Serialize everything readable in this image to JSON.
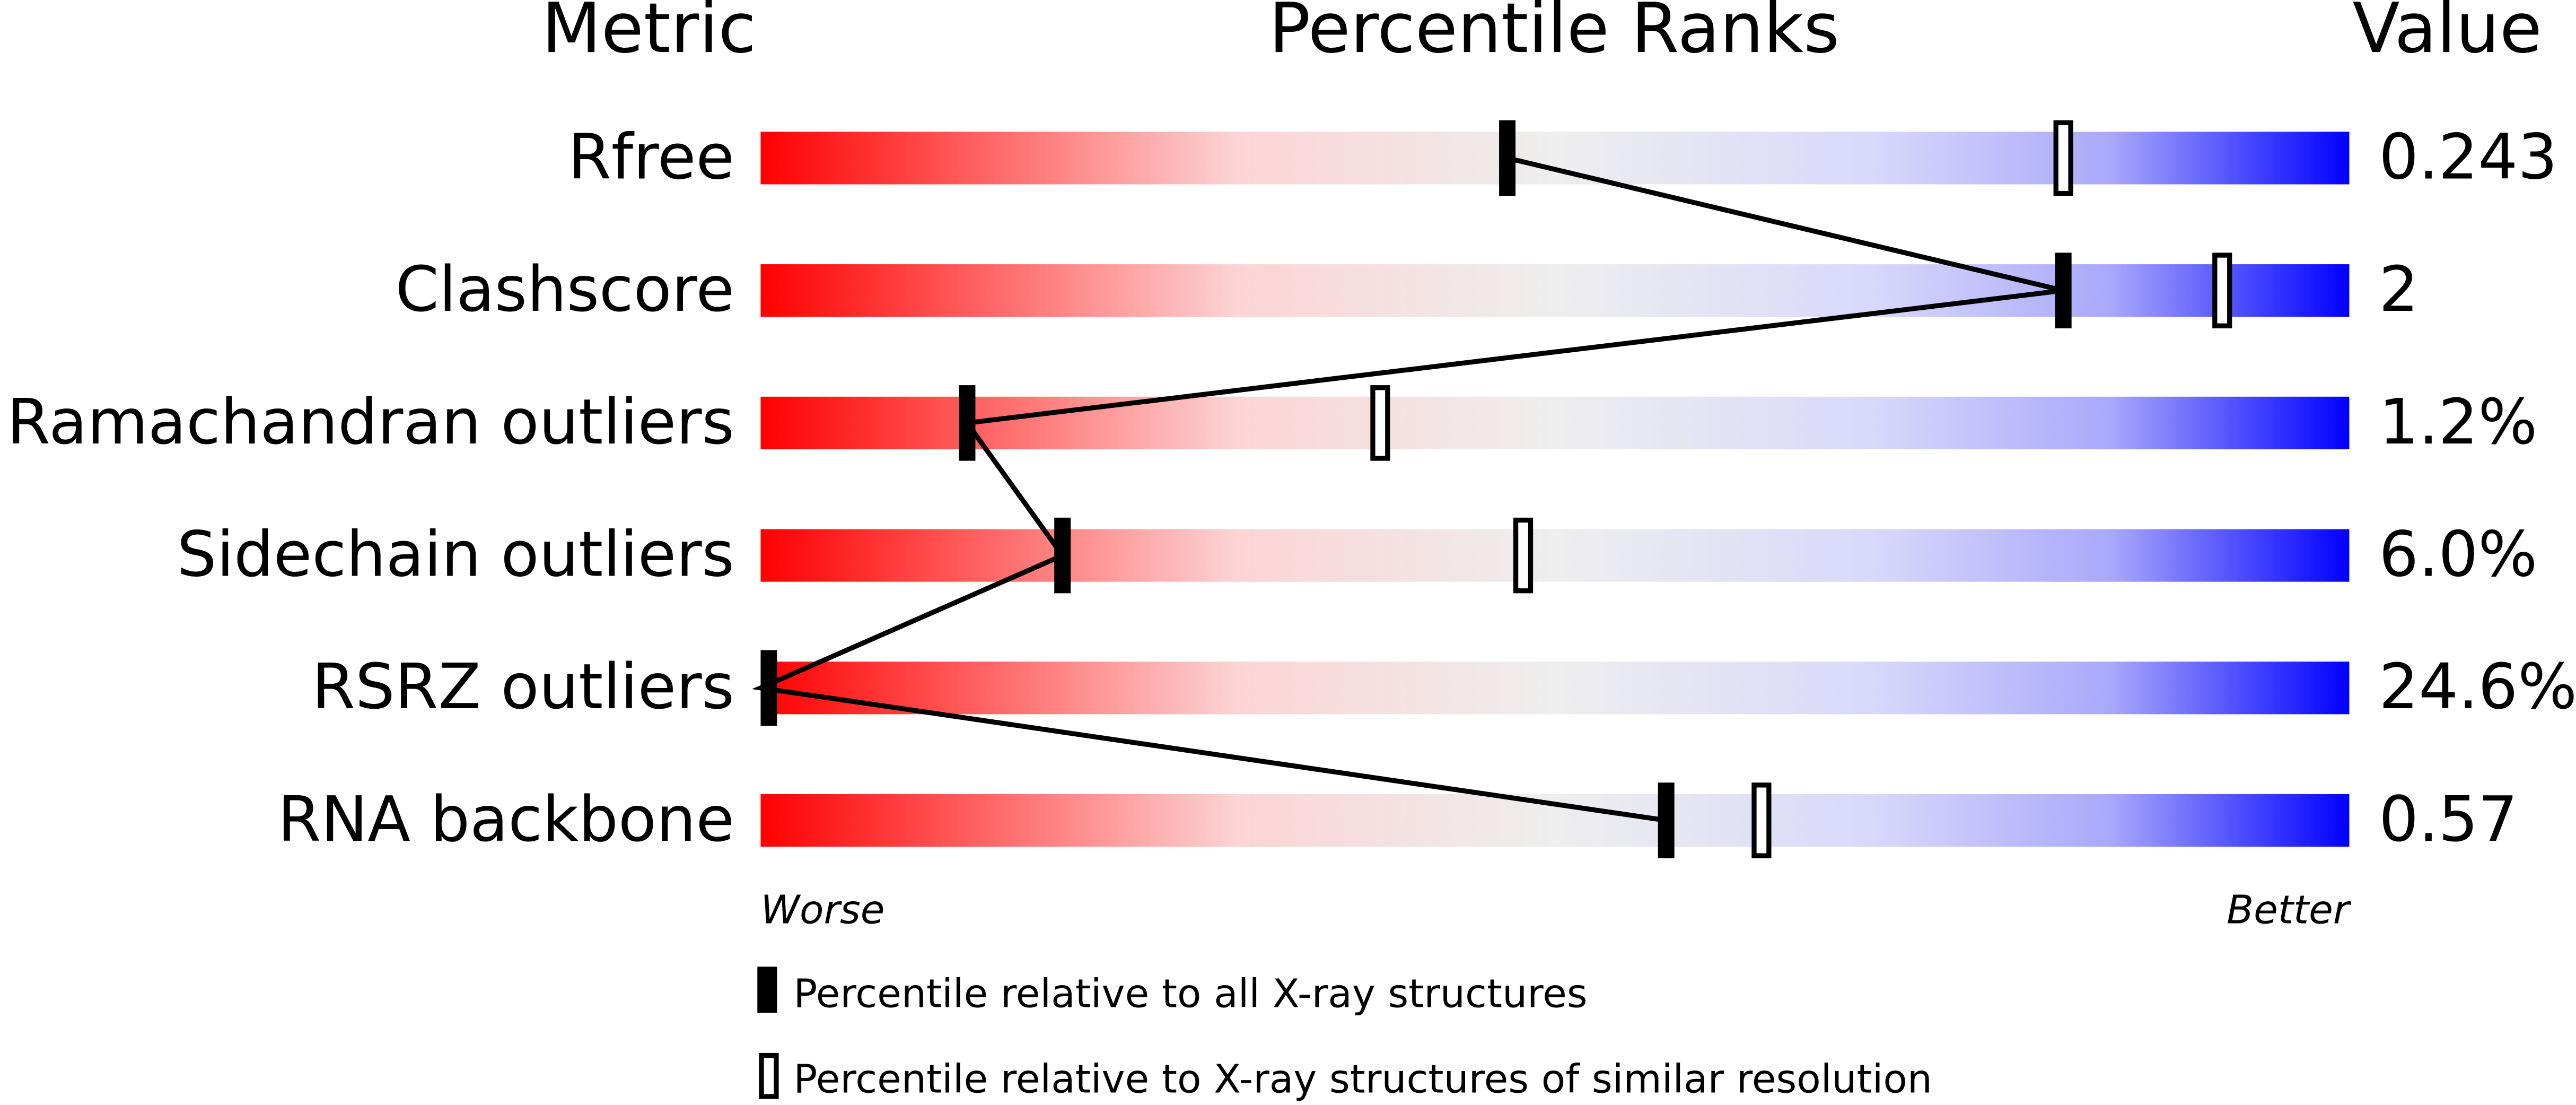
{
  "chart_data": {
    "type": "percentile-slider",
    "column_titles": [
      "Metric",
      "Percentile Ranks",
      "Value"
    ],
    "categories": [
      "Rfree",
      "Clashscore",
      "Ramachandran outliers",
      "Sidechain outliers",
      "RSRZ outliers",
      "RNA backbone"
    ],
    "value_labels": [
      "0.243",
      "2",
      "1.2%",
      "6.0%",
      "24.6%",
      "0.57"
    ],
    "series": [
      {
        "name": "Percentile relative to all X-ray structures",
        "color": "#000000",
        "values": [
          47,
          82,
          13,
          19,
          0,
          57
        ]
      },
      {
        "name": "Percentile relative to X-ray structures of similar resolution",
        "color": "#000000",
        "values": [
          82,
          92,
          39,
          48,
          null,
          63
        ]
      }
    ],
    "xlim": [
      0,
      100
    ],
    "axis_labels": [
      "Worse",
      "Better"
    ]
  }
}
